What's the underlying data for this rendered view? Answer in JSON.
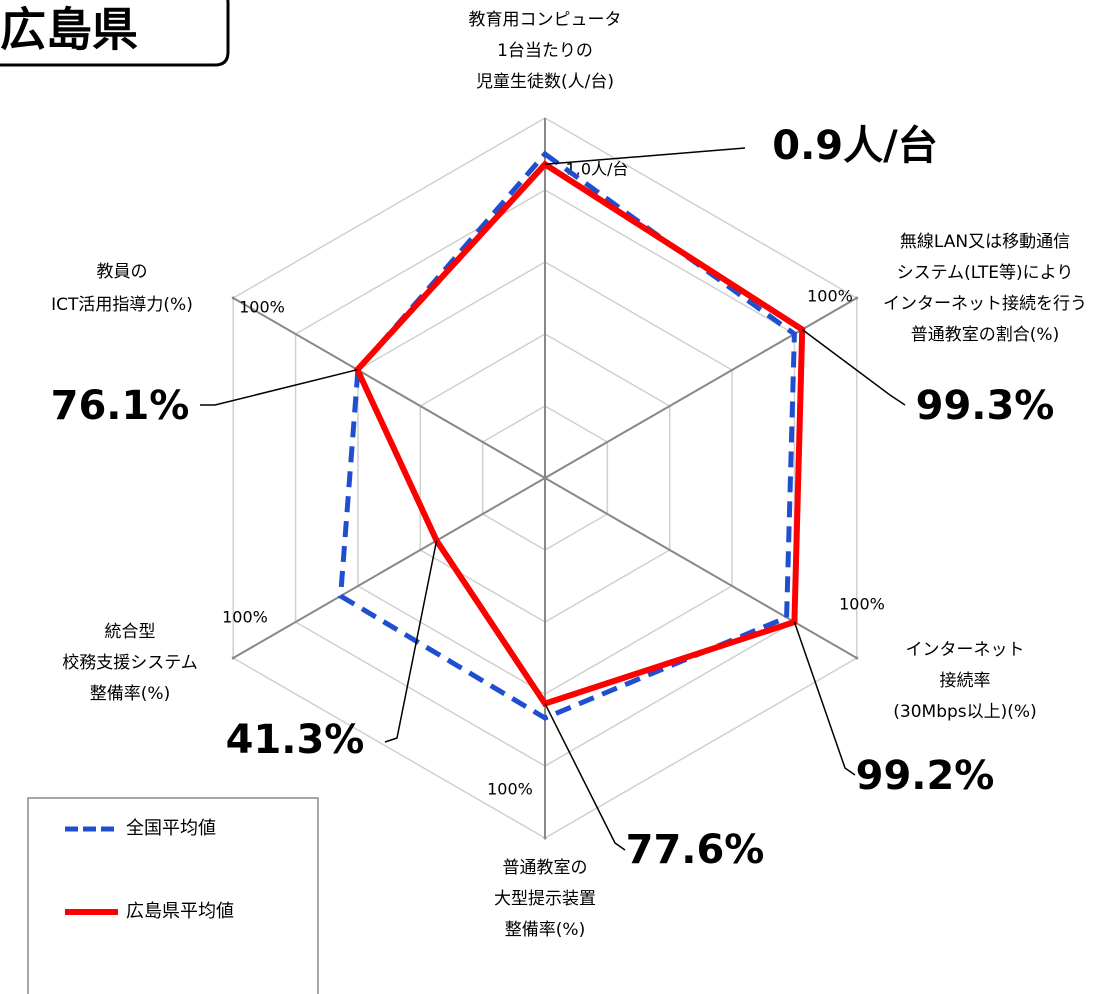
{
  "title": "広島県",
  "chart_data": {
    "type": "radar",
    "axes": [
      {
        "label": [
          "教育用コンピュータ",
          "1台当たりの",
          "児童生徒数(人/台)"
        ],
        "rlim": [
          7,
          0
        ],
        "ticks": [
          {
            "value": 1.0,
            "label": "1.0人/台"
          }
        ]
      },
      {
        "label": [
          "無線LAN又は移動通信",
          "システム(LTE等)により",
          "インターネット接続を行う",
          "普通教室の割合(%)"
        ],
        "rlim": [
          96,
          100
        ],
        "ticks": [
          {
            "value": 100,
            "label": "100%"
          }
        ]
      },
      {
        "label": [
          "インターネット",
          "接続率",
          "(30Mbps以上)(%)"
        ],
        "rlim": [
          96,
          100
        ],
        "ticks": [
          {
            "value": 100,
            "label": "100%"
          }
        ]
      },
      {
        "label": [
          "普通教室の",
          "大型提示装置",
          "整備率(%)"
        ],
        "rlim": [
          40,
          100
        ],
        "ticks": [
          {
            "value": 100,
            "label": "100%"
          }
        ]
      },
      {
        "label": [
          "統合型",
          "校務支援システム",
          "整備率(%)"
        ],
        "rlim": [
          10,
          100
        ],
        "ticks": [
          {
            "value": 100,
            "label": "100%"
          }
        ]
      },
      {
        "label": [
          "教員の",
          "ICT活用指導力(%)"
        ],
        "rlim": [
          40,
          100
        ],
        "ticks": [
          {
            "value": 100,
            "label": "100%"
          }
        ]
      }
    ],
    "series": [
      {
        "name": "全国平均値",
        "color": "#1f4fd1",
        "dashed": true,
        "values": [
          0.7,
          99.2,
          99.1,
          80,
          69,
          76
        ]
      },
      {
        "name": "広島県平均値",
        "color": "#ff0000",
        "dashed": false,
        "values": [
          0.9,
          99.3,
          99.2,
          77.6,
          41.3,
          76.1
        ],
        "value_labels": [
          "0.9人/台",
          "99.3%",
          "99.2%",
          "77.6%",
          "41.3%",
          "76.1%"
        ]
      }
    ]
  }
}
